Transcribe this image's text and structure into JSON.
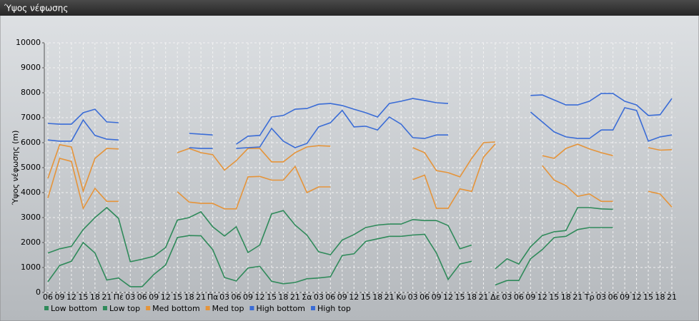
{
  "chart_data": {
    "type": "line",
    "title": "Ύψος νέφωσης",
    "y_label": "Ύψος νέφωσης (m)",
    "categories": [
      "06",
      "09",
      "12",
      "15",
      "18",
      "21",
      "Πέ",
      "03",
      "06",
      "09",
      "12",
      "15",
      "18",
      "21",
      "Πα",
      "03",
      "06",
      "09",
      "12",
      "15",
      "18",
      "21",
      "Σα",
      "03",
      "06",
      "09",
      "12",
      "15",
      "18",
      "21",
      "Κυ",
      "03",
      "06",
      "09",
      "12",
      "15",
      "18",
      "21",
      "Δε",
      "03",
      "06",
      "09",
      "12",
      "15",
      "18",
      "21",
      "Τρ",
      "03",
      "06",
      "09",
      "12",
      "15",
      "18",
      "21"
    ],
    "ylim": [
      0,
      10000
    ],
    "yticks": [
      0,
      1000,
      2000,
      3000,
      4000,
      5000,
      6000,
      7000,
      8000,
      9000,
      10000
    ],
    "grid": true,
    "legend": "bottom",
    "series": [
      {
        "name": "Low bottom",
        "color": "#2f8a5a",
        "values": [
          430,
          1080,
          1250,
          2000,
          1580,
          500,
          580,
          230,
          230,
          720,
          1100,
          2200,
          2280,
          2270,
          1720,
          600,
          460,
          980,
          1050,
          450,
          350,
          400,
          550,
          580,
          630,
          1480,
          1550,
          2050,
          2150,
          2250,
          2250,
          2300,
          2330,
          1580,
          520,
          1140,
          1250,
          null,
          300,
          480,
          480,
          1350,
          1720,
          2200,
          2250,
          2520,
          2600,
          2600,
          2600,
          null,
          null,
          null,
          null,
          null
        ]
      },
      {
        "name": "Low top",
        "color": "#2f8a5a",
        "values": [
          1580,
          1750,
          1850,
          2520,
          3000,
          3400,
          2970,
          1230,
          1330,
          1450,
          1800,
          2900,
          3000,
          3230,
          2630,
          2260,
          2630,
          1600,
          1900,
          3150,
          3280,
          2700,
          2300,
          1630,
          1510,
          2100,
          2320,
          2600,
          2700,
          2740,
          2740,
          2920,
          2880,
          2880,
          2680,
          1750,
          1900,
          null,
          950,
          1350,
          1140,
          1830,
          2280,
          2430,
          2480,
          3400,
          3400,
          3350,
          3330,
          null,
          null,
          null,
          null,
          null
        ]
      },
      {
        "name": "Med bottom",
        "color": "#e5943a",
        "values": [
          3780,
          5370,
          5250,
          3370,
          4170,
          3650,
          3650,
          null,
          null,
          null,
          null,
          4030,
          3620,
          3570,
          3570,
          3350,
          3350,
          4630,
          4650,
          4500,
          4500,
          5050,
          4000,
          4230,
          4230,
          null,
          null,
          null,
          null,
          null,
          null,
          4520,
          4700,
          3370,
          3370,
          4150,
          4050,
          5420,
          5950,
          null,
          null,
          null,
          5080,
          4500,
          4280,
          3850,
          3950,
          3650,
          3650,
          null,
          null,
          4050,
          3950,
          3420
        ]
      },
      {
        "name": "Med top",
        "color": "#e5943a",
        "values": [
          4570,
          5920,
          5830,
          4060,
          5370,
          5770,
          5750,
          null,
          null,
          null,
          null,
          5600,
          5770,
          5600,
          5520,
          4900,
          5280,
          5770,
          5770,
          5230,
          5230,
          5600,
          5830,
          5880,
          5860,
          null,
          null,
          null,
          null,
          null,
          null,
          5800,
          5600,
          4880,
          4800,
          4630,
          5370,
          6000,
          6030,
          null,
          null,
          null,
          5480,
          5370,
          5770,
          5940,
          5750,
          5600,
          5480,
          null,
          null,
          5800,
          5700,
          5720
        ]
      },
      {
        "name": "High bottom",
        "color": "#3a6cd6",
        "values": [
          6110,
          6060,
          6060,
          6910,
          6290,
          6140,
          6110,
          null,
          null,
          null,
          null,
          null,
          5800,
          5770,
          5770,
          null,
          5770,
          5800,
          5830,
          6570,
          6060,
          5800,
          5970,
          6630,
          6800,
          7290,
          6630,
          6660,
          6510,
          7030,
          6740,
          6200,
          6170,
          6310,
          6310,
          null,
          null,
          null,
          null,
          null,
          null,
          7230,
          6830,
          6430,
          6230,
          6170,
          6170,
          6510,
          6510,
          7400,
          7290,
          6060,
          6230,
          6310
        ]
      },
      {
        "name": "High top",
        "color": "#3a6cd6",
        "values": [
          6770,
          6740,
          6740,
          7200,
          7340,
          6830,
          6800,
          null,
          null,
          null,
          null,
          null,
          6370,
          6340,
          6310,
          null,
          5940,
          6260,
          6290,
          7030,
          7090,
          7340,
          7370,
          7540,
          7570,
          7490,
          7340,
          7200,
          7030,
          7570,
          7660,
          7770,
          7690,
          7600,
          7570,
          null,
          null,
          null,
          null,
          null,
          null,
          7890,
          7910,
          7710,
          7510,
          7510,
          7660,
          7970,
          7970,
          7660,
          7510,
          7090,
          7120,
          7770
        ]
      }
    ]
  }
}
